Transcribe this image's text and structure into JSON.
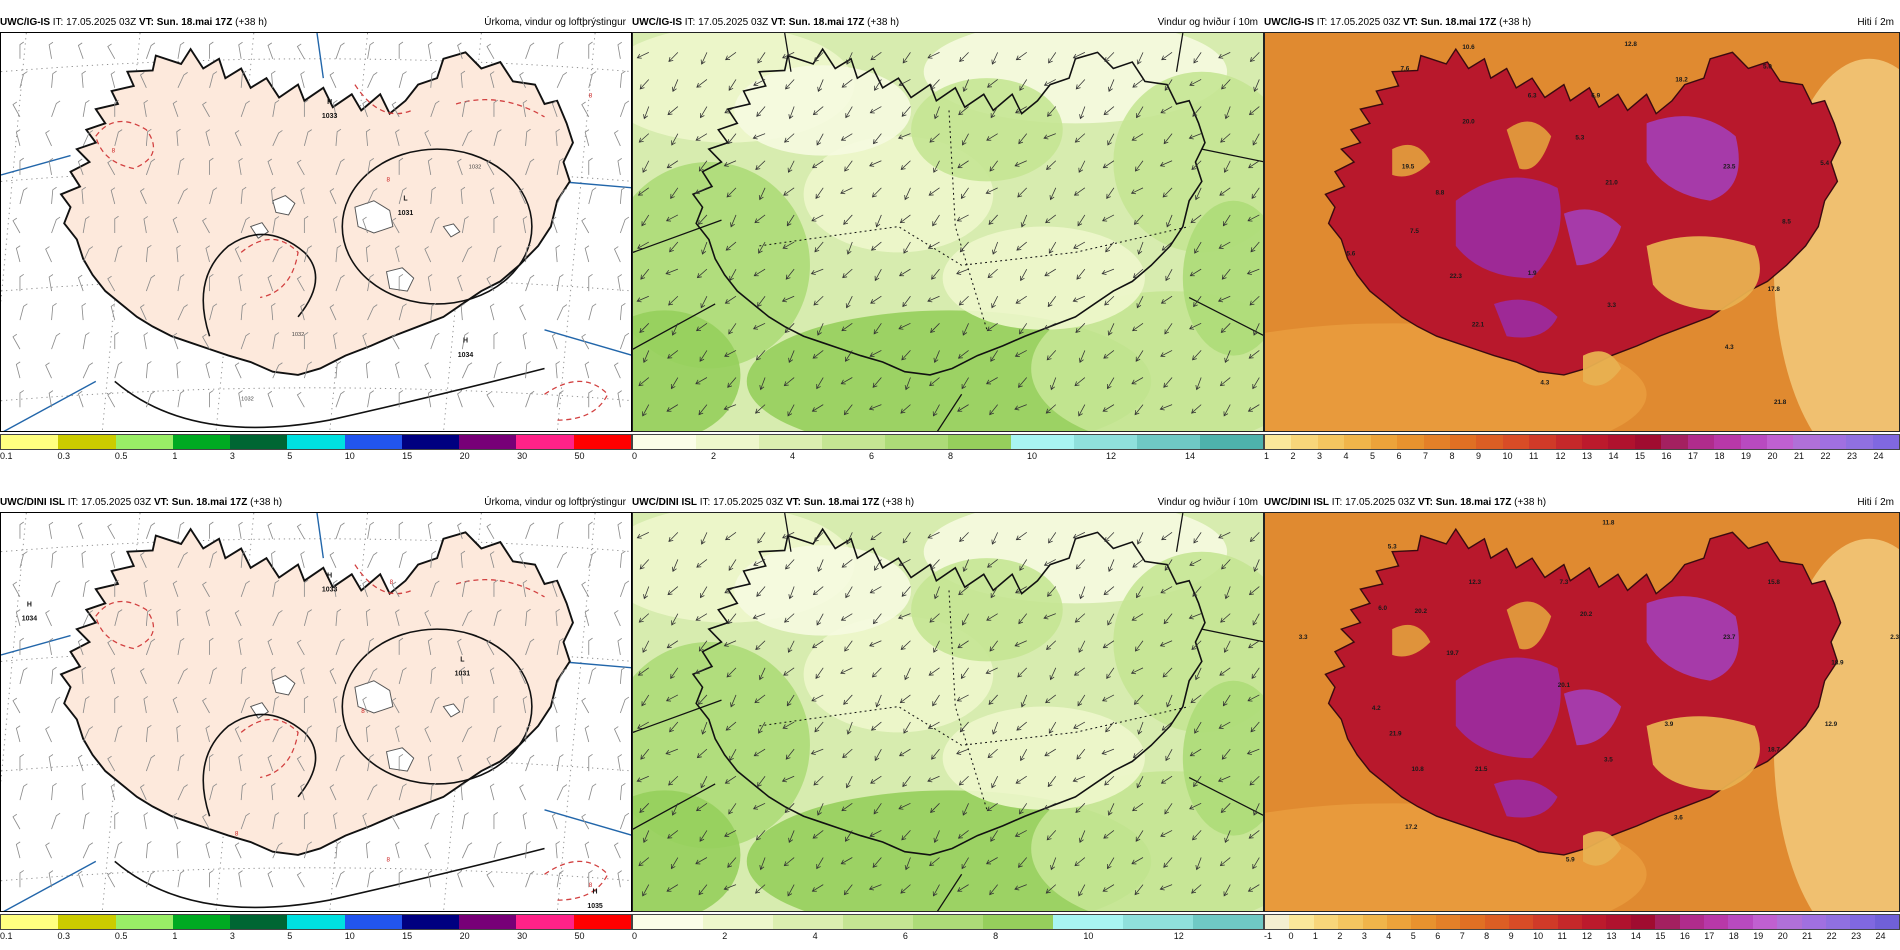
{
  "panels": [
    {
      "id": "igis-prec",
      "model": "UWC/IG-IS",
      "it_label": "IT:",
      "it": "17.05.2025 03Z",
      "vt_label": "VT:",
      "vt": "Sun. 18.mai 17Z",
      "lead": "(+38 h)",
      "field": "Úrkoma, vindur og loftþrýstingur",
      "colorbar": {
        "colors": [
          "#ffff80",
          "#cccc00",
          "#99ee66",
          "#00aa22",
          "#006633",
          "#00e0e0",
          "#2255ee",
          "#000080",
          "#770077",
          "#ff2288",
          "#ff0000"
        ],
        "ticks": [
          "0.1",
          "0.3",
          "0.5",
          "1",
          "3",
          "5",
          "10",
          "15",
          "20",
          "30",
          "50"
        ]
      },
      "pressure_labels": [
        {
          "kind": "H",
          "value": "1033"
        },
        {
          "kind": "L",
          "value": "1031"
        },
        {
          "kind": "H",
          "value": "1034"
        }
      ],
      "isobars": [
        "1032",
        "1032",
        "1032"
      ],
      "red_labels": [
        "8",
        "8",
        "8",
        "8"
      ]
    },
    {
      "id": "igis-wind",
      "model": "UWC/IG-IS",
      "it_label": "IT:",
      "it": "17.05.2025 03Z",
      "vt_label": "VT:",
      "vt": "Sun. 18.mai 17Z",
      "lead": "(+38 h)",
      "field": "Vindur og hviður í 10m",
      "colorbar": {
        "colors": [
          "#fbfde8",
          "#eef7cc",
          "#dcefb0",
          "#c5e593",
          "#addb78",
          "#96cf5c",
          "#a8f5f2",
          "#8fe0dc",
          "#6fc9c4",
          "#4eb2ac"
        ],
        "ticks": [
          "0",
          "2",
          "4",
          "6",
          "8",
          "10",
          "12",
          "14"
        ]
      }
    },
    {
      "id": "igis-temp",
      "model": "UWC/IG-IS",
      "it_label": "IT:",
      "it": "17.05.2025 03Z",
      "vt_label": "VT:",
      "vt": "Sun. 18.mai 17Z",
      "lead": "(+38 h)",
      "field": "Hiti í 2m",
      "colorbar": {
        "colors": [
          "#fbe89a",
          "#f8d67a",
          "#f4c660",
          "#f0b54a",
          "#eca33a",
          "#e8922e",
          "#e48028",
          "#e07024",
          "#dc5e24",
          "#d84c26",
          "#d03a28",
          "#c6282a",
          "#bc1a2c",
          "#b0122e",
          "#a00c30",
          "#a42060",
          "#b02c8c",
          "#b838a8",
          "#b84ac0",
          "#c060d0",
          "#b070d8",
          "#a070e0",
          "#9070e0",
          "#8068e0"
        ],
        "ticks": [
          "1",
          "2",
          "3",
          "4",
          "5",
          "6",
          "7",
          "8",
          "9",
          "10",
          "11",
          "12",
          "13",
          "14",
          "15",
          "16",
          "17",
          "18",
          "19",
          "20",
          "21",
          "22",
          "23",
          "24"
        ]
      },
      "temps": [
        "10.6",
        "12.8",
        "7.6",
        "20.0",
        "6.3",
        "6.9",
        "18.2",
        "5.0",
        "19.5",
        "5.3",
        "8.8",
        "23.5",
        "5.4",
        "21.0",
        "8.5",
        "7.5",
        "22.3",
        "1.9",
        "5.6",
        "22.1",
        "3.3",
        "17.8",
        "4.3",
        "4.3",
        "21.8"
      ]
    },
    {
      "id": "dini-prec",
      "model": "UWC/DINI ISL",
      "it_label": "IT:",
      "it": "17.05.2025 03Z",
      "vt_label": "VT:",
      "vt": "Sun. 18.mai 17Z",
      "lead": "(+38 h)",
      "field": "Úrkoma, vindur og loftþrýstingur",
      "colorbar": {
        "colors": [
          "#ffff80",
          "#cccc00",
          "#99ee66",
          "#00aa22",
          "#006633",
          "#00e0e0",
          "#2255ee",
          "#000080",
          "#770077",
          "#ff2288",
          "#ff0000"
        ],
        "ticks": [
          "0.1",
          "0.3",
          "0.5",
          "1",
          "3",
          "5",
          "10",
          "15",
          "20",
          "30",
          "50"
        ]
      },
      "pressure_labels": [
        {
          "kind": "H",
          "value": "1034"
        },
        {
          "kind": "H",
          "value": "1033"
        },
        {
          "kind": "L",
          "value": "1031"
        },
        {
          "kind": "H",
          "value": "1035"
        }
      ],
      "red_labels": [
        "8",
        "8",
        "8",
        "8",
        "8"
      ]
    },
    {
      "id": "dini-wind",
      "model": "UWC/DINI ISL",
      "it_label": "IT:",
      "it": "17.05.2025 03Z",
      "vt_label": "VT:",
      "vt": "Sun. 18.mai 17Z",
      "lead": "(+38 h)",
      "field": "Vindur og hviður í 10m",
      "colorbar": {
        "colors": [
          "#fbfde8",
          "#eef7cc",
          "#dcefb0",
          "#c5e593",
          "#addb78",
          "#96cf5c",
          "#a8f5f2",
          "#8fe0dc",
          "#6fc9c4"
        ],
        "ticks": [
          "0",
          "2",
          "4",
          "6",
          "8",
          "10",
          "12"
        ]
      }
    },
    {
      "id": "dini-temp",
      "model": "UWC/DINI ISL",
      "it_label": "IT:",
      "it": "17.05.2025 03Z",
      "vt_label": "VT:",
      "vt": "Sun. 18.mai 17Z",
      "lead": "(+38 h)",
      "field": "Hiti í 2m",
      "colorbar": {
        "colors": [
          "#f4efd0",
          "#fbe89a",
          "#f8d67a",
          "#f4c660",
          "#f0b54a",
          "#eca33a",
          "#e8922e",
          "#e48028",
          "#e07024",
          "#dc5e24",
          "#d84c26",
          "#d03a28",
          "#c6282a",
          "#bc1a2c",
          "#b0122e",
          "#a00c30",
          "#a42060",
          "#b02c8c",
          "#b838a8",
          "#b84ac0",
          "#c060d0",
          "#b070d8",
          "#a070e0",
          "#9070e0",
          "#8068e0",
          "#7060d8"
        ],
        "ticks": [
          "-1",
          "0",
          "1",
          "2",
          "3",
          "4",
          "5",
          "6",
          "7",
          "8",
          "9",
          "10",
          "11",
          "12",
          "13",
          "14",
          "15",
          "16",
          "17",
          "18",
          "19",
          "20",
          "21",
          "22",
          "23",
          "24"
        ]
      },
      "temps": [
        "11.8",
        "5.3",
        "12.3",
        "7.3",
        "15.8",
        "6.0",
        "20.2",
        "20.2",
        "23.7",
        "3.3",
        "19.7",
        "2.3",
        "18.9",
        "4.2",
        "21.9",
        "20.1",
        "3.9",
        "12.9",
        "10.8",
        "21.5",
        "3.5",
        "18.7",
        "17.2",
        "3.6",
        "5.9"
      ]
    }
  ]
}
